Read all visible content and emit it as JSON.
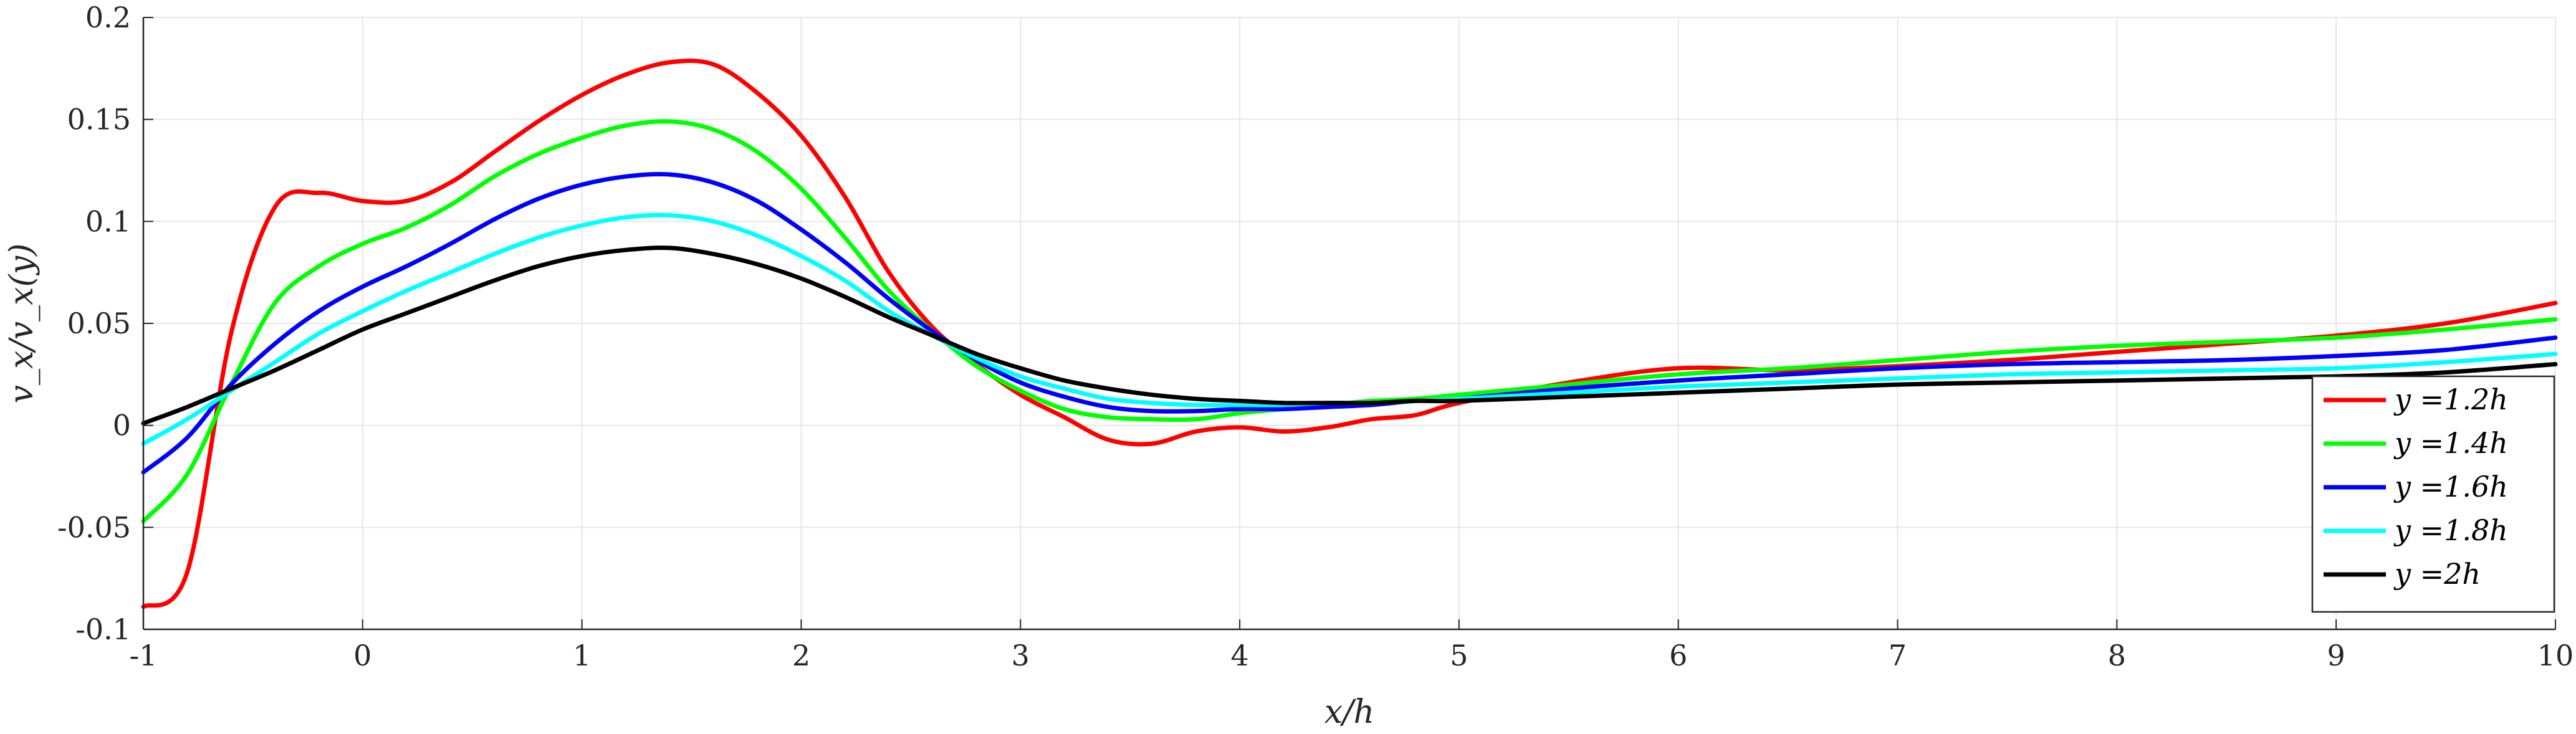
{
  "chart_data": {
    "type": "line",
    "xlabel": "x/h",
    "ylabel": "v_x/v_x(y)",
    "xlim": [
      -1,
      10
    ],
    "ylim": [
      -0.1,
      0.2
    ],
    "grid": true,
    "legend_position": "bottom-right",
    "x_ticks": [
      "-1",
      "0",
      "1",
      "2",
      "3",
      "4",
      "5",
      "6",
      "7",
      "8",
      "9",
      "10"
    ],
    "y_ticks": [
      "-0.1",
      "-0.05",
      "0",
      "0.05",
      "0.1",
      "0.15",
      "0.2"
    ],
    "x": [
      -1,
      -0.8,
      -0.6,
      -0.4,
      -0.2,
      0,
      0.2,
      0.4,
      0.6,
      0.8,
      1,
      1.2,
      1.4,
      1.6,
      1.8,
      2,
      2.2,
      2.4,
      2.6,
      2.8,
      3,
      3.2,
      3.4,
      3.6,
      3.8,
      4,
      4.2,
      4.4,
      4.6,
      4.8,
      5,
      5.5,
      6,
      6.5,
      7,
      7.5,
      8,
      8.5,
      9,
      9.5,
      10
    ],
    "series": [
      {
        "name": "y =1.2h",
        "color": "#ff0000",
        "values": [
          -0.089,
          -0.072,
          0.045,
          0.107,
          0.114,
          0.11,
          0.11,
          0.119,
          0.134,
          0.149,
          0.162,
          0.172,
          0.178,
          0.177,
          0.163,
          0.142,
          0.112,
          0.075,
          0.048,
          0.03,
          0.015,
          0.004,
          -0.007,
          -0.009,
          -0.003,
          -0.001,
          -0.003,
          -0.001,
          0.003,
          0.005,
          0.011,
          0.021,
          0.028,
          0.027,
          0.029,
          0.032,
          0.036,
          0.04,
          0.044,
          0.05,
          0.06
        ]
      },
      {
        "name": "y =1.4h",
        "color": "#00ff00",
        "values": [
          -0.047,
          -0.024,
          0.02,
          0.06,
          0.078,
          0.089,
          0.097,
          0.108,
          0.122,
          0.133,
          0.141,
          0.147,
          0.149,
          0.145,
          0.134,
          0.116,
          0.092,
          0.066,
          0.046,
          0.029,
          0.017,
          0.008,
          0.004,
          0.003,
          0.003,
          0.006,
          0.008,
          0.01,
          0.012,
          0.013,
          0.015,
          0.02,
          0.025,
          0.028,
          0.032,
          0.036,
          0.039,
          0.041,
          0.043,
          0.047,
          0.052
        ]
      },
      {
        "name": "y =1.6h",
        "color": "#0000ff",
        "values": [
          -0.023,
          -0.006,
          0.02,
          0.04,
          0.056,
          0.068,
          0.078,
          0.089,
          0.101,
          0.111,
          0.118,
          0.122,
          0.123,
          0.119,
          0.11,
          0.096,
          0.08,
          0.062,
          0.046,
          0.032,
          0.021,
          0.014,
          0.009,
          0.007,
          0.007,
          0.008,
          0.008,
          0.009,
          0.01,
          0.012,
          0.013,
          0.018,
          0.022,
          0.025,
          0.028,
          0.03,
          0.031,
          0.032,
          0.034,
          0.037,
          0.043
        ]
      },
      {
        "name": "y =1.8h",
        "color": "#00ffff",
        "values": [
          -0.009,
          0.003,
          0.017,
          0.031,
          0.045,
          0.056,
          0.066,
          0.075,
          0.084,
          0.092,
          0.098,
          0.102,
          0.103,
          0.1,
          0.093,
          0.083,
          0.071,
          0.056,
          0.044,
          0.033,
          0.024,
          0.018,
          0.013,
          0.011,
          0.01,
          0.01,
          0.01,
          0.011,
          0.011,
          0.012,
          0.013,
          0.016,
          0.019,
          0.021,
          0.023,
          0.025,
          0.026,
          0.027,
          0.028,
          0.031,
          0.035
        ]
      },
      {
        "name": "y =2h",
        "color": "#000000",
        "values": [
          0.001,
          0.009,
          0.018,
          0.027,
          0.037,
          0.047,
          0.055,
          0.063,
          0.071,
          0.078,
          0.083,
          0.086,
          0.087,
          0.084,
          0.079,
          0.072,
          0.063,
          0.053,
          0.044,
          0.035,
          0.028,
          0.022,
          0.018,
          0.015,
          0.013,
          0.012,
          0.011,
          0.011,
          0.011,
          0.012,
          0.012,
          0.014,
          0.016,
          0.018,
          0.02,
          0.021,
          0.022,
          0.023,
          0.024,
          0.026,
          0.03
        ]
      }
    ]
  }
}
